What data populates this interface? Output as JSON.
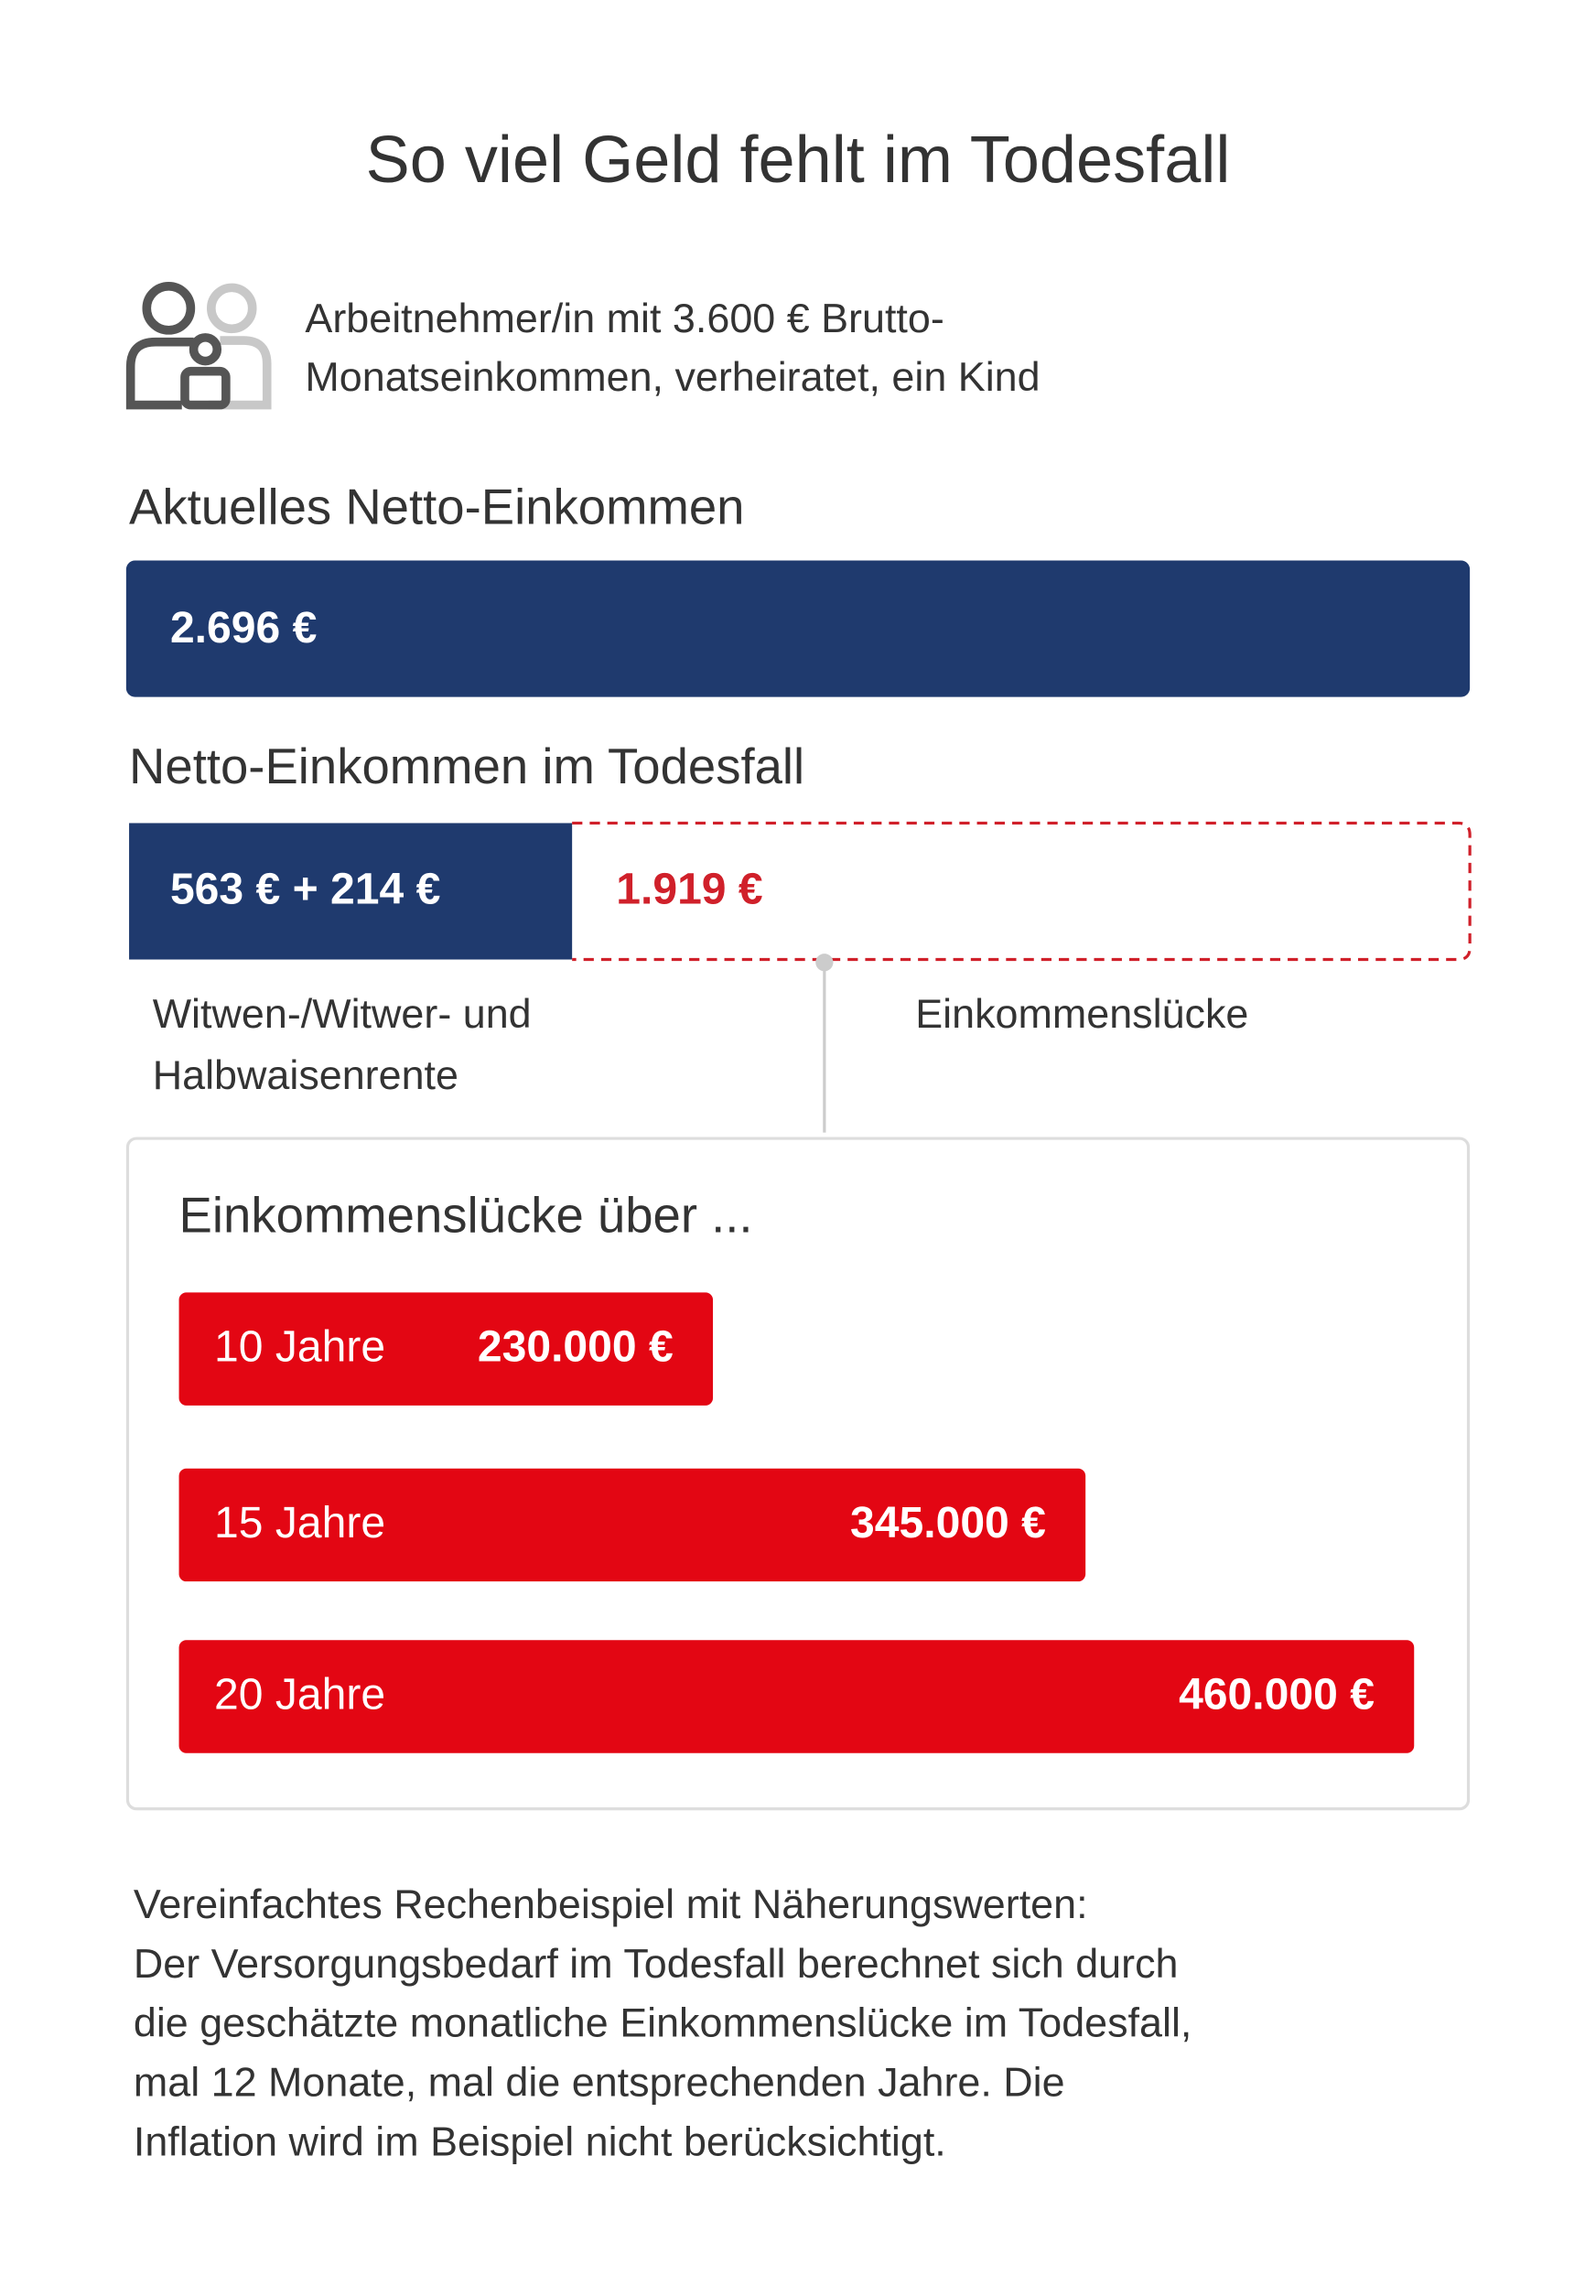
{
  "title": "So viel Geld fehlt im Todesfall",
  "profile": {
    "lines": [
      "Arbeitnehmer/in mit 3.600 € Brutto-",
      "Monatseinkommen, verheiratet, ein Kind"
    ]
  },
  "current": {
    "label": "Aktuelles Netto-Einkommen",
    "value": "2.696 €"
  },
  "death": {
    "label": "Netto-Einkommen im Todesfall",
    "pension_value": "563 € + 214 €",
    "gap_value": "1.919 €",
    "pension_label": [
      "Witwen-/Witwer- und",
      "Halbwaisenrente"
    ],
    "gap_label": "Einkommenslücke"
  },
  "gap_over": {
    "title": "Einkommenslücke über ...",
    "rows": [
      {
        "period": "10 Jahre",
        "amount": "230.000 €"
      },
      {
        "period": "15 Jahre",
        "amount": "345.000 €"
      },
      {
        "period": "20 Jahre",
        "amount": "460.000 €"
      }
    ]
  },
  "footnote": [
    "Vereinfachtes Rechenbeispiel mit Näherungswerten:",
    "Der Versorgungsbedarf im Todesfall berechnet sich durch",
    "die geschätzte monatliche Einkommenslücke im Todesfall,",
    "mal 12 Monate, mal die entsprechenden Jahre. Die",
    "Inflation wird im Beispiel nicht berücksichtigt."
  ]
}
